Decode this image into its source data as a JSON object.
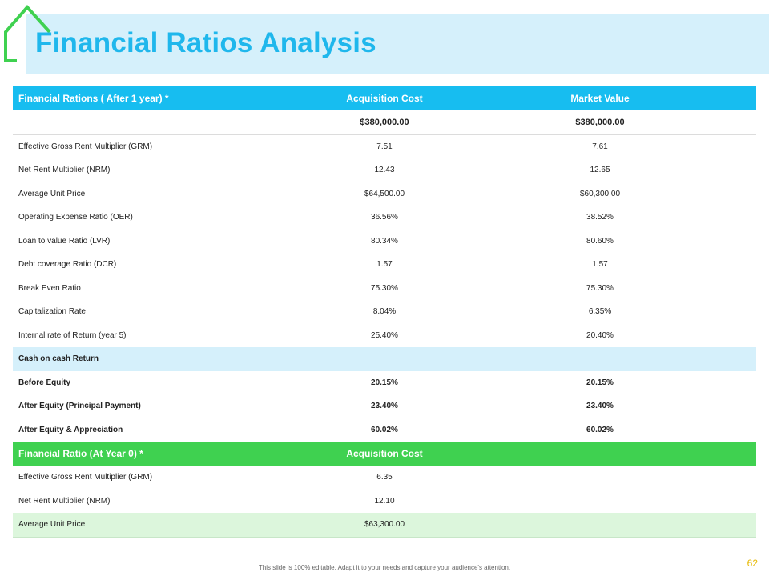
{
  "title": "Financial Ratios Analysis",
  "table": {
    "headers": [
      "Financial Rations ( After 1 year) *",
      "Acquisition  Cost",
      "Market Value"
    ],
    "price_row": [
      "",
      "$380,000.00",
      "$380,000.00"
    ],
    "rows": [
      [
        "Effective Gross Rent Multiplier  (GRM)",
        "7.51",
        "7.61"
      ],
      [
        "Net Rent Multiplier  (NRM)",
        "12.43",
        "12.65"
      ],
      [
        "Average Unit Price",
        "$64,500.00",
        "$60,300.00"
      ],
      [
        "Operating Expense Ratio  (OER)",
        "36.56%",
        "38.52%"
      ],
      [
        "Loan to value Ratio  (LVR)",
        "80.34%",
        "80.60%"
      ],
      [
        "Debt  coverage Ratio  (DCR)",
        "1.57",
        "1.57"
      ],
      [
        "Break Even Ratio",
        "75.30%",
        "75.30%"
      ],
      [
        "Capitalization Rate",
        "8.04%",
        "6.35%"
      ],
      [
        "Internal rate of Return  (year 5)",
        "25.40%",
        "20.40%"
      ]
    ],
    "section_label": "Cash on cash Return",
    "return_rows": [
      [
        "Before Equity",
        "20.15%",
        "20.15%"
      ],
      [
        "After Equity (Principal Payment)",
        "23.40%",
        "23.40%"
      ],
      [
        "After Equity & Appreciation",
        "60.02%",
        "60.02%"
      ]
    ],
    "year0_headers": [
      "Financial Ratio (At Year 0) *",
      "Acquisition  Cost",
      ""
    ],
    "year0_rows": [
      [
        "Effective Gross Rent Multiplier  (GRM)",
        "6.35",
        ""
      ],
      [
        "Net Rent Multiplier  (NRM)",
        "12.10",
        ""
      ],
      [
        "Average Unit Price",
        "$63,300.00",
        ""
      ]
    ]
  },
  "footer_note": "This slide is 100% editable. Adapt it to your needs and capture your audience's attention.",
  "page_number": "62",
  "colors": {
    "title": "#1fb7ec",
    "blue_header": "#17bdf0",
    "green_header": "#3fd150",
    "section_band": "#d5f0fb",
    "last_row": "#dcf6dc",
    "house_icon": "#3fd150",
    "page_number": "#e6b800"
  },
  "icons": {
    "logo": "house-icon"
  }
}
